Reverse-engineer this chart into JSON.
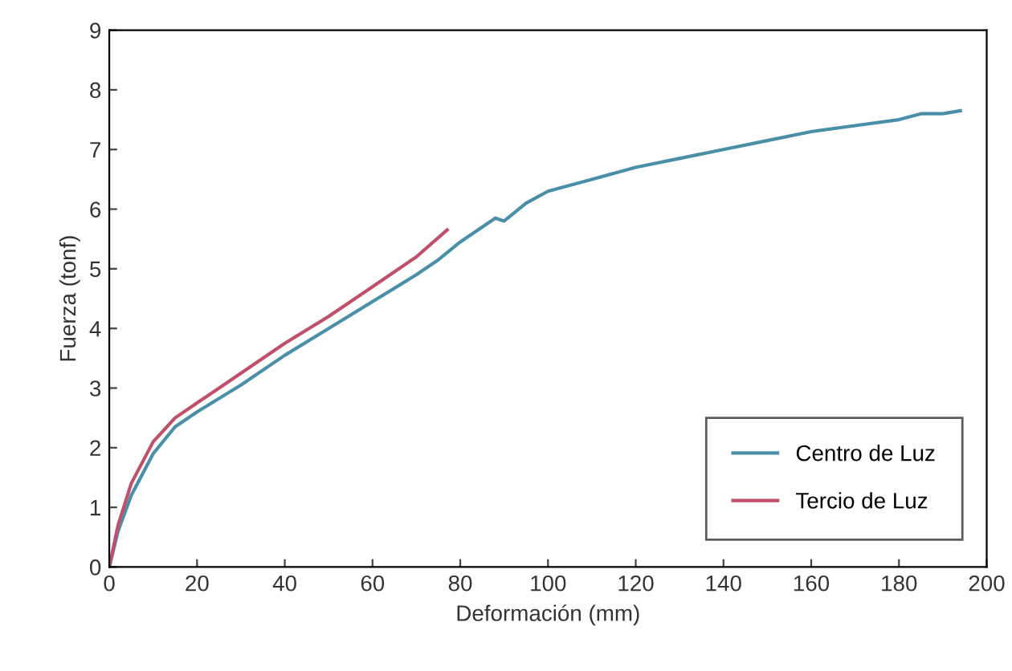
{
  "chart_data": {
    "type": "line",
    "xlabel": "Deformación (mm)",
    "ylabel": "Fuerza (tonf)",
    "xlim": [
      0,
      200
    ],
    "xticks": [
      0,
      20,
      40,
      60,
      80,
      100,
      120,
      140,
      160,
      180,
      200
    ],
    "ylim": [
      0,
      9
    ],
    "yticks": [
      0,
      1,
      2,
      3,
      4,
      5,
      6,
      7,
      8,
      9
    ],
    "grid": false,
    "legend": "bottom right",
    "line_style": "solid",
    "series": [
      {
        "name": "Centro de Luz",
        "color": "#4a8fa8",
        "x": [
          0,
          2,
          5,
          10,
          15,
          20,
          30,
          40,
          50,
          60,
          70,
          75,
          80,
          88,
          90,
          95,
          100,
          110,
          120,
          130,
          140,
          150,
          160,
          170,
          180,
          185,
          190,
          194
        ],
        "values": [
          0,
          0.6,
          1.2,
          1.9,
          2.35,
          2.6,
          3.05,
          3.55,
          4.0,
          4.45,
          4.9,
          5.15,
          5.45,
          5.85,
          5.8,
          6.1,
          6.3,
          6.5,
          6.7,
          6.85,
          7.0,
          7.15,
          7.3,
          7.4,
          7.5,
          7.6,
          7.6,
          7.65
        ]
      },
      {
        "name": "Tercio de Luz",
        "color": "#c0506a",
        "x": [
          0,
          2,
          5,
          10,
          15,
          20,
          30,
          40,
          50,
          60,
          70,
          77
        ],
        "values": [
          0,
          0.7,
          1.4,
          2.1,
          2.5,
          2.75,
          3.25,
          3.75,
          4.2,
          4.7,
          5.2,
          5.65
        ]
      }
    ]
  }
}
